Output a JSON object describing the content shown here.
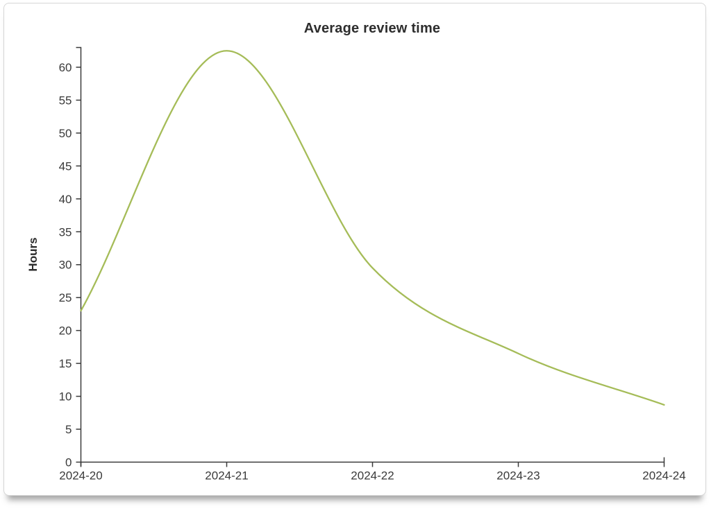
{
  "chart_data": {
    "type": "line",
    "title": "Average review time",
    "ylabel": "Hours",
    "xlabel": "",
    "categories": [
      "2024-20",
      "2024-21",
      "2024-22",
      "2024-23",
      "2024-24"
    ],
    "series": [
      {
        "name": "average-review-time",
        "color": "#a5bc58",
        "values": [
          23,
          62.5,
          29.5,
          16.5,
          8.7
        ]
      }
    ],
    "ylim": [
      0,
      63
    ],
    "ytick_step": 5,
    "grid": false,
    "legend_position": "none",
    "smooth": true,
    "axis_color": "#3a3a3a",
    "tick_label_color": "#3a3a3a",
    "tick_label_size": 17,
    "title_color": "#2d2d2d"
  }
}
